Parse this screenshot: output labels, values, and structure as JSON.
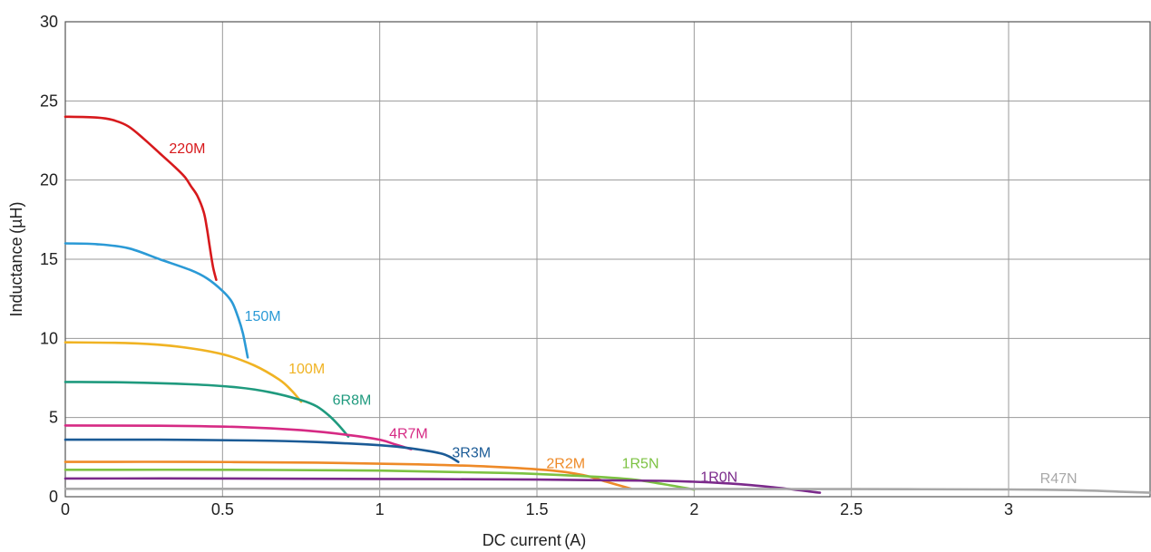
{
  "chart_data": {
    "type": "line",
    "title": "",
    "xlabel": "DC current (A)",
    "ylabel": "Inductance (µH)",
    "xlim": [
      0,
      3.45
    ],
    "ylim": [
      0,
      30
    ],
    "xticks": [
      0,
      0.5,
      1,
      1.5,
      2,
      2.5,
      3
    ],
    "xtick_labels": [
      "0",
      "0.5",
      "1",
      "1.5",
      "2",
      "2.5",
      "3"
    ],
    "yticks": [
      0,
      5,
      10,
      15,
      20,
      25,
      30
    ],
    "ytick_labels": [
      "0",
      "5",
      "10",
      "15",
      "20",
      "25",
      "30"
    ],
    "grid": true,
    "legend": "inline labels",
    "series": [
      {
        "name": "220M",
        "color": "#d7191c",
        "label_at": [
          0.33,
          21.7
        ],
        "points": [
          [
            0,
            24.0
          ],
          [
            0.1,
            23.95
          ],
          [
            0.15,
            23.8
          ],
          [
            0.2,
            23.4
          ],
          [
            0.25,
            22.6
          ],
          [
            0.3,
            21.7
          ],
          [
            0.35,
            20.8
          ],
          [
            0.38,
            20.2
          ],
          [
            0.4,
            19.6
          ],
          [
            0.42,
            19.0
          ],
          [
            0.44,
            18.0
          ],
          [
            0.45,
            17.0
          ],
          [
            0.46,
            15.7
          ],
          [
            0.47,
            14.5
          ],
          [
            0.48,
            13.7
          ]
        ]
      },
      {
        "name": "150M",
        "color": "#2b9ad6",
        "label_at": [
          0.57,
          11.1
        ],
        "points": [
          [
            0,
            16.0
          ],
          [
            0.1,
            15.95
          ],
          [
            0.2,
            15.7
          ],
          [
            0.3,
            15.0
          ],
          [
            0.4,
            14.3
          ],
          [
            0.45,
            13.8
          ],
          [
            0.5,
            13.0
          ],
          [
            0.53,
            12.3
          ],
          [
            0.55,
            11.3
          ],
          [
            0.565,
            10.3
          ],
          [
            0.58,
            8.8
          ]
        ]
      },
      {
        "name": "100M",
        "color": "#f0b323",
        "label_at": [
          0.71,
          7.8
        ],
        "points": [
          [
            0,
            9.75
          ],
          [
            0.2,
            9.7
          ],
          [
            0.35,
            9.5
          ],
          [
            0.5,
            9.0
          ],
          [
            0.6,
            8.3
          ],
          [
            0.68,
            7.4
          ],
          [
            0.72,
            6.7
          ],
          [
            0.75,
            6.0
          ]
        ]
      },
      {
        "name": "6R8M",
        "color": "#1f9a7e",
        "label_at": [
          0.85,
          5.8
        ],
        "points": [
          [
            0,
            7.25
          ],
          [
            0.2,
            7.22
          ],
          [
            0.4,
            7.1
          ],
          [
            0.55,
            6.9
          ],
          [
            0.65,
            6.6
          ],
          [
            0.75,
            6.1
          ],
          [
            0.8,
            5.7
          ],
          [
            0.84,
            5.1
          ],
          [
            0.87,
            4.5
          ],
          [
            0.9,
            3.8
          ]
        ]
      },
      {
        "name": "4R7M",
        "color": "#d62a84",
        "label_at": [
          1.03,
          3.7
        ],
        "points": [
          [
            0,
            4.5
          ],
          [
            0.3,
            4.48
          ],
          [
            0.55,
            4.4
          ],
          [
            0.75,
            4.2
          ],
          [
            0.9,
            3.9
          ],
          [
            1.0,
            3.6
          ],
          [
            1.05,
            3.3
          ],
          [
            1.1,
            3.0
          ]
        ]
      },
      {
        "name": "3R3M",
        "color": "#1b5b96",
        "label_at": [
          1.23,
          2.5
        ],
        "points": [
          [
            0,
            3.6
          ],
          [
            0.3,
            3.6
          ],
          [
            0.6,
            3.55
          ],
          [
            0.8,
            3.45
          ],
          [
            1.0,
            3.25
          ],
          [
            1.1,
            3.05
          ],
          [
            1.2,
            2.7
          ],
          [
            1.25,
            2.2
          ]
        ]
      },
      {
        "name": "2R2M",
        "color": "#ee8a28",
        "label_at": [
          1.53,
          1.8
        ],
        "points": [
          [
            0,
            2.2
          ],
          [
            0.4,
            2.2
          ],
          [
            0.8,
            2.15
          ],
          [
            1.1,
            2.05
          ],
          [
            1.35,
            1.9
          ],
          [
            1.55,
            1.65
          ],
          [
            1.65,
            1.35
          ],
          [
            1.72,
            0.95
          ],
          [
            1.8,
            0.5
          ]
        ]
      },
      {
        "name": "1R5N",
        "color": "#7cc242",
        "label_at": [
          1.77,
          1.8
        ],
        "points": [
          [
            0,
            1.7
          ],
          [
            0.5,
            1.7
          ],
          [
            1.0,
            1.65
          ],
          [
            1.4,
            1.5
          ],
          [
            1.65,
            1.3
          ],
          [
            1.8,
            1.1
          ],
          [
            1.9,
            0.8
          ],
          [
            2.0,
            0.45
          ]
        ]
      },
      {
        "name": "1R0N",
        "color": "#7b2a8b",
        "label_at": [
          2.02,
          0.95
        ],
        "points": [
          [
            0,
            1.15
          ],
          [
            0.5,
            1.15
          ],
          [
            1.0,
            1.12
          ],
          [
            1.5,
            1.08
          ],
          [
            1.9,
            1.0
          ],
          [
            2.1,
            0.85
          ],
          [
            2.25,
            0.6
          ],
          [
            2.4,
            0.25
          ]
        ]
      },
      {
        "name": "R47N",
        "color": "#a8a8a8",
        "label_at": [
          3.1,
          0.85
        ],
        "points": [
          [
            0,
            0.5
          ],
          [
            0.5,
            0.5
          ],
          [
            1.0,
            0.5
          ],
          [
            1.5,
            0.5
          ],
          [
            2.0,
            0.49
          ],
          [
            2.5,
            0.48
          ],
          [
            3.0,
            0.46
          ],
          [
            3.2,
            0.42
          ],
          [
            3.35,
            0.32
          ],
          [
            3.45,
            0.25
          ]
        ]
      }
    ]
  }
}
